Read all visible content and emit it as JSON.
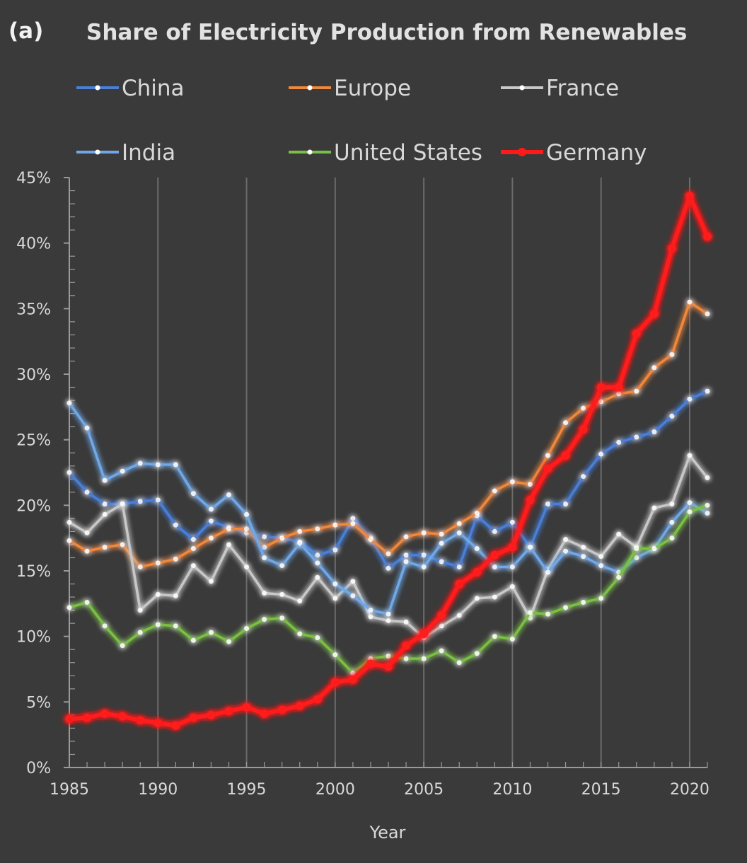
{
  "panel_label": "(a)",
  "colors": {
    "background": "#3a3a3a",
    "grid": "#6b6b6b",
    "axis": "#9a9a9a",
    "text": "#d9d9d9"
  },
  "chart_data": {
    "type": "line",
    "title": "Share of Electricity Production from Renewables",
    "xlabel": "Year",
    "ylabel": "",
    "x": [
      1985,
      1986,
      1987,
      1988,
      1989,
      1990,
      1991,
      1992,
      1993,
      1994,
      1995,
      1996,
      1997,
      1998,
      1999,
      2000,
      2001,
      2002,
      2003,
      2004,
      2005,
      2006,
      2007,
      2008,
      2009,
      2010,
      2011,
      2012,
      2013,
      2014,
      2015,
      2016,
      2017,
      2018,
      2019,
      2020,
      2021
    ],
    "xlim": [
      1985,
      2021
    ],
    "ylim": [
      0,
      45
    ],
    "x_ticks": [
      "1985",
      "1990",
      "1995",
      "2000",
      "2005",
      "2010",
      "2015",
      "2020"
    ],
    "y_ticks": [
      "0%",
      "5%",
      "10%",
      "15%",
      "20%",
      "25%",
      "30%",
      "35%",
      "40%",
      "45%"
    ],
    "grid": "vertical",
    "legend_position": "top",
    "series": [
      {
        "name": "China",
        "color": "#4a7fd8",
        "values": [
          22.5,
          21.0,
          20.1,
          20.1,
          20.3,
          20.4,
          18.5,
          17.4,
          18.8,
          18.3,
          17.9,
          17.6,
          17.5,
          17.2,
          16.2,
          16.6,
          19.0,
          17.5,
          15.2,
          16.2,
          16.2,
          15.7,
          15.3,
          19.2,
          18.0,
          18.7,
          16.8,
          20.1,
          20.1,
          22.2,
          23.9,
          24.8,
          25.2,
          25.6,
          26.8,
          28.1,
          28.7
        ]
      },
      {
        "name": "Europe",
        "color": "#f0883c",
        "values": [
          17.3,
          16.5,
          16.8,
          17.0,
          15.3,
          15.6,
          15.9,
          16.7,
          17.5,
          18.2,
          18.2,
          16.8,
          17.5,
          18.0,
          18.2,
          18.5,
          18.6,
          17.4,
          16.3,
          17.6,
          17.9,
          17.8,
          18.6,
          19.4,
          21.1,
          21.8,
          21.6,
          23.8,
          26.3,
          27.4,
          27.9,
          28.5,
          28.7,
          30.5,
          31.5,
          35.5,
          34.6
        ]
      },
      {
        "name": "France",
        "color": "#c8c8c8",
        "values": [
          18.7,
          17.9,
          19.3,
          20.1,
          12.0,
          13.2,
          13.1,
          15.4,
          14.2,
          17.0,
          15.3,
          13.3,
          13.2,
          12.7,
          14.5,
          12.9,
          14.2,
          11.5,
          11.2,
          11.1,
          9.9,
          10.8,
          11.6,
          12.9,
          13.0,
          13.8,
          11.4,
          15.1,
          17.4,
          16.8,
          16.1,
          17.8,
          16.8,
          19.8,
          20.1,
          23.8,
          22.1
        ]
      },
      {
        "name": "India",
        "color": "#6fa8e8",
        "values": [
          27.8,
          25.9,
          21.9,
          22.6,
          23.2,
          23.1,
          23.1,
          20.9,
          19.7,
          20.8,
          19.3,
          16.0,
          15.4,
          17.1,
          15.6,
          14.0,
          13.1,
          12.0,
          11.7,
          15.7,
          15.3,
          17.1,
          17.9,
          16.7,
          15.3,
          15.3,
          16.8,
          14.9,
          16.5,
          16.1,
          15.4,
          14.9,
          16.0,
          16.7,
          18.7,
          20.2,
          19.4
        ]
      },
      {
        "name": "United States",
        "color": "#7cbf45",
        "values": [
          12.2,
          12.6,
          10.8,
          9.3,
          10.3,
          10.9,
          10.8,
          9.7,
          10.3,
          9.6,
          10.6,
          11.3,
          11.4,
          10.2,
          9.9,
          8.6,
          7.2,
          8.3,
          8.5,
          8.3,
          8.3,
          8.9,
          8.0,
          8.7,
          10.0,
          9.8,
          11.8,
          11.7,
          12.2,
          12.6,
          12.9,
          14.5,
          16.7,
          16.7,
          17.5,
          19.5,
          20.0
        ]
      },
      {
        "name": "Germany",
        "color": "#ff1a1a",
        "values": [
          3.7,
          3.8,
          4.1,
          3.9,
          3.6,
          3.4,
          3.2,
          3.8,
          4.0,
          4.3,
          4.6,
          4.1,
          4.4,
          4.7,
          5.2,
          6.5,
          6.7,
          7.9,
          7.7,
          9.3,
          10.2,
          11.6,
          14.0,
          14.9,
          16.2,
          16.8,
          20.4,
          22.8,
          23.8,
          25.8,
          29.0,
          29.0,
          33.1,
          34.6,
          39.6,
          43.6,
          40.5
        ]
      }
    ]
  }
}
